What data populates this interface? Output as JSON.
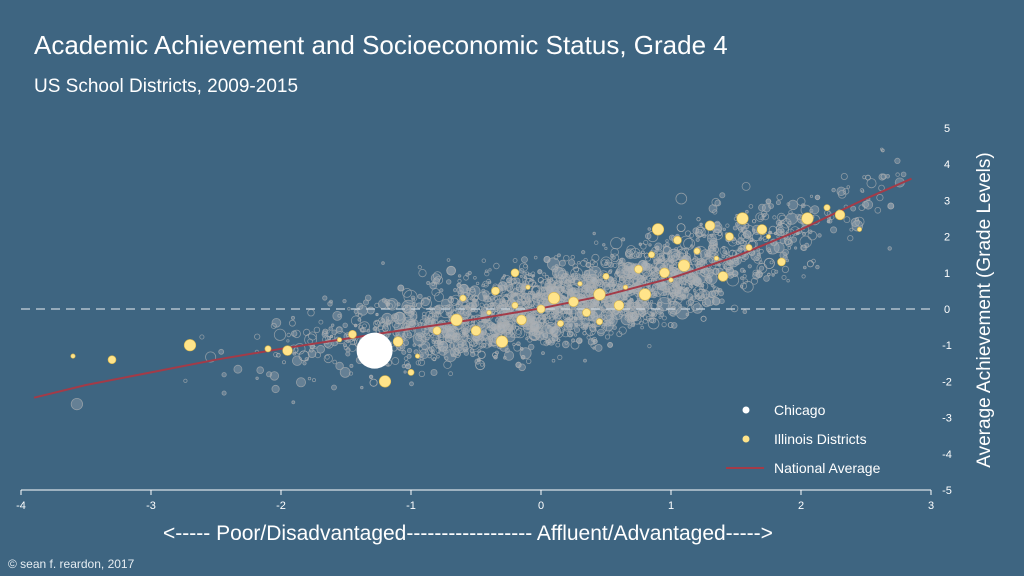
{
  "chart_data": {
    "type": "scatter",
    "title": "Academic Achievement and Socioeconomic Status, Grade 4",
    "subtitle": "US School Districts, 2009-2015",
    "xlabel": "<----- Poor/Disadvantaged------------------ Affluent/Advantaged----->",
    "ylabel": "Average Achievement (Grade Levels)",
    "xlim": [
      -4,
      3
    ],
    "ylim": [
      -5,
      5
    ],
    "xticks": [
      "-4",
      "-3",
      "-2",
      "-1",
      "0",
      "1",
      "2",
      "3"
    ],
    "yticks": [
      "-5",
      "-4",
      "-3",
      "-2",
      "-1",
      "0",
      "1",
      "2",
      "3",
      "4",
      "5"
    ],
    "reference_line_y": 0,
    "legend_position": "bottom-right",
    "series": [
      {
        "name": "Chicago",
        "color": "#ffffff",
        "points": [
          [
            -1.28,
            -1.15
          ]
        ]
      },
      {
        "name": "Illinois Districts",
        "color": "#ffe48a",
        "points": [
          [
            -3.6,
            -1.3
          ],
          [
            -3.3,
            -1.4
          ],
          [
            -2.7,
            -1.0
          ],
          [
            -2.1,
            -1.1
          ],
          [
            -1.95,
            -1.15
          ],
          [
            -1.55,
            -0.85
          ],
          [
            -1.45,
            -0.7
          ],
          [
            -1.2,
            -2.0
          ],
          [
            -1.0,
            -1.75
          ],
          [
            -1.1,
            -0.9
          ],
          [
            -0.95,
            -1.3
          ],
          [
            -0.8,
            -0.6
          ],
          [
            -0.65,
            -0.3
          ],
          [
            -0.6,
            0.3
          ],
          [
            -0.5,
            -0.6
          ],
          [
            -0.4,
            -0.1
          ],
          [
            -0.35,
            0.5
          ],
          [
            -0.3,
            -0.9
          ],
          [
            -0.2,
            0.1
          ],
          [
            -0.15,
            -0.3
          ],
          [
            -0.1,
            0.6
          ],
          [
            0.0,
            0.0
          ],
          [
            0.1,
            0.3
          ],
          [
            0.15,
            -0.4
          ],
          [
            0.25,
            0.2
          ],
          [
            0.3,
            0.7
          ],
          [
            0.35,
            -0.1
          ],
          [
            0.45,
            0.4
          ],
          [
            0.5,
            0.9
          ],
          [
            0.6,
            0.1
          ],
          [
            0.65,
            0.6
          ],
          [
            0.75,
            1.1
          ],
          [
            0.8,
            0.4
          ],
          [
            0.85,
            1.5
          ],
          [
            0.95,
            1.0
          ],
          [
            1.0,
            0.8
          ],
          [
            1.05,
            1.9
          ],
          [
            1.1,
            1.2
          ],
          [
            1.2,
            1.6
          ],
          [
            1.3,
            2.3
          ],
          [
            1.35,
            1.4
          ],
          [
            1.45,
            2.0
          ],
          [
            1.55,
            2.5
          ],
          [
            1.6,
            1.7
          ],
          [
            1.7,
            2.2
          ],
          [
            1.75,
            2.0
          ],
          [
            1.85,
            1.3
          ],
          [
            2.05,
            2.5
          ],
          [
            2.2,
            2.8
          ],
          [
            2.3,
            2.6
          ],
          [
            2.45,
            2.2
          ],
          [
            -0.2,
            1.0
          ],
          [
            0.9,
            2.2
          ],
          [
            0.45,
            -0.35
          ],
          [
            1.4,
            0.9
          ]
        ]
      },
      {
        "name": "National Average",
        "color": "#a33b48",
        "points": [
          [
            -3.9,
            -2.45
          ],
          [
            -3.5,
            -2.1
          ],
          [
            -3.0,
            -1.75
          ],
          [
            -2.5,
            -1.4
          ],
          [
            -2.0,
            -1.1
          ],
          [
            -1.5,
            -0.82
          ],
          [
            -1.0,
            -0.55
          ],
          [
            -0.5,
            -0.28
          ],
          [
            0.0,
            0.02
          ],
          [
            0.5,
            0.38
          ],
          [
            1.0,
            0.85
          ],
          [
            1.5,
            1.45
          ],
          [
            2.0,
            2.2
          ],
          [
            2.5,
            3.05
          ],
          [
            2.85,
            3.6
          ]
        ]
      }
    ]
  },
  "credit": "© sean f. reardon, 2017"
}
